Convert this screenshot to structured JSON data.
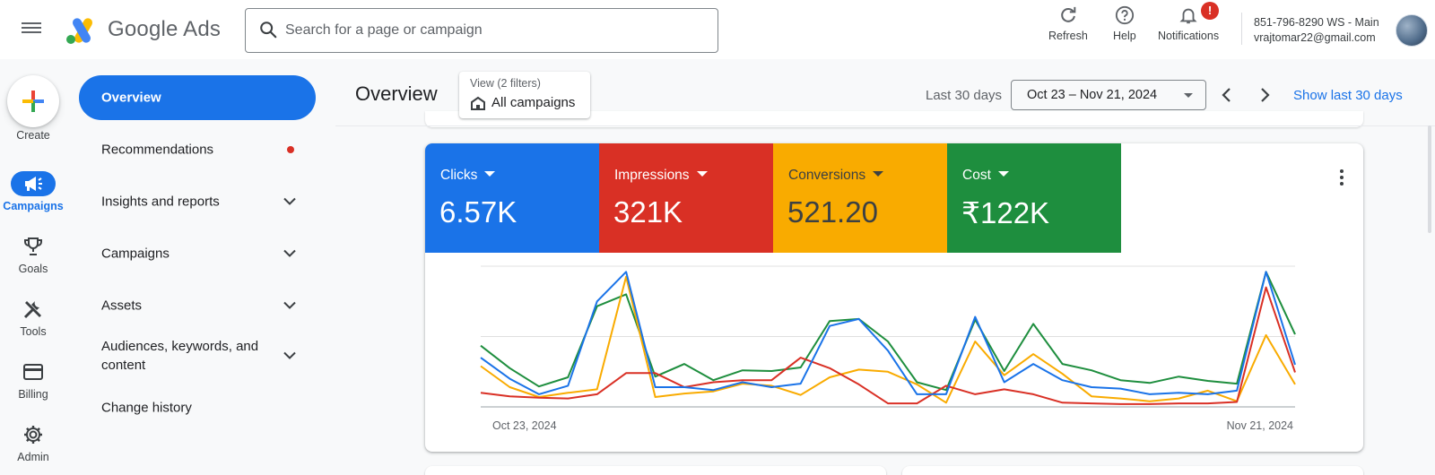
{
  "header": {
    "brand": "Google Ads",
    "search_placeholder": "Search for a page or campaign",
    "actions": {
      "refresh": "Refresh",
      "help": "Help",
      "notifications": "Notifications",
      "notification_badge": "!"
    },
    "account": {
      "line1": "851-796-8290 WS - Main",
      "line2": "vrajtomar22@gmail.com"
    }
  },
  "rail": {
    "create": "Create",
    "items": [
      {
        "label": "Campaigns",
        "icon": "megaphone-icon"
      },
      {
        "label": "Goals",
        "icon": "trophy-icon"
      },
      {
        "label": "Tools",
        "icon": "tools-icon"
      },
      {
        "label": "Billing",
        "icon": "credit-card-icon"
      },
      {
        "label": "Admin",
        "icon": "gear-icon"
      }
    ]
  },
  "sidenav": {
    "items": [
      {
        "label": "Overview"
      },
      {
        "label": "Recommendations"
      },
      {
        "label": "Insights and reports"
      },
      {
        "label": "Campaigns"
      },
      {
        "label": "Assets"
      },
      {
        "label": "Audiences, keywords, and content"
      },
      {
        "label": "Change history"
      }
    ]
  },
  "page": {
    "title": "Overview",
    "view_sub": "View (2 filters)",
    "view_main": "All campaigns",
    "last_days": "Last 30 days",
    "date_range": "Oct 23 – Nov 21, 2024",
    "show_last": "Show last 30 days"
  },
  "metrics": [
    {
      "name": "Clicks",
      "value": "6.57K",
      "color": "#1a73e8"
    },
    {
      "name": "Impressions",
      "value": "321K",
      "color": "#d93025"
    },
    {
      "name": "Conversions",
      "value": "521.20",
      "color": "#f9ab00"
    },
    {
      "name": "Cost",
      "value": "₹122K",
      "color": "#1e8e3e"
    }
  ],
  "chart_data": {
    "type": "line",
    "x_start_label": "Oct 23, 2024",
    "x_end_label": "Nov 21, 2024",
    "grid": true,
    "series": [
      {
        "name": "Clicks",
        "color": "#1a73e8",
        "values": [
          70,
          40,
          18,
          30,
          150,
          192,
          28,
          28,
          24,
          35,
          28,
          33,
          115,
          125,
          80,
          18,
          18,
          128,
          35,
          61,
          38,
          28,
          26,
          18,
          20,
          18,
          23,
          192,
          60
        ]
      },
      {
        "name": "Impressions",
        "color": "#d93025",
        "values": [
          20,
          15,
          13,
          12,
          18,
          48,
          48,
          28,
          35,
          38,
          38,
          70,
          55,
          32,
          5,
          5,
          30,
          18,
          25,
          18,
          6,
          5,
          4,
          4,
          5,
          5,
          7,
          170,
          49
        ]
      },
      {
        "name": "Conversions",
        "color": "#f9ab00",
        "values": [
          58,
          28,
          14,
          20,
          25,
          185,
          14,
          19,
          22,
          33,
          30,
          17,
          42,
          53,
          50,
          32,
          6,
          93,
          45,
          75,
          47,
          15,
          12,
          8,
          12,
          23,
          8,
          102,
          32
        ]
      },
      {
        "name": "Cost",
        "color": "#1e8e3e",
        "values": [
          87,
          55,
          29,
          42,
          143,
          160,
          43,
          61,
          38,
          52,
          51,
          56,
          122,
          125,
          93,
          35,
          24,
          124,
          51,
          118,
          61,
          52,
          38,
          34,
          43,
          37,
          33,
          192,
          103
        ]
      }
    ]
  }
}
